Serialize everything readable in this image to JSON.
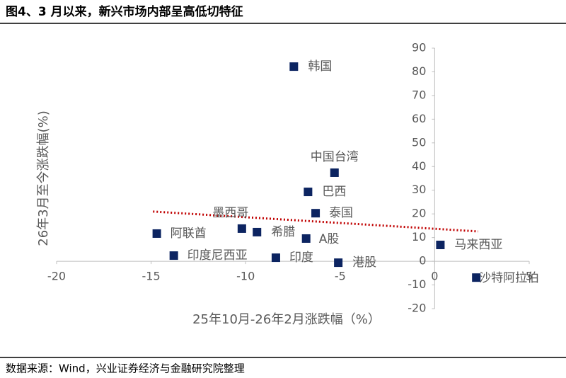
{
  "chart_data": {
    "type": "scatter",
    "title": "图4、3 月以来，新兴市场内部呈高低切特征",
    "source": "数据来源：Wind，兴业证券经济与金融研究院整理",
    "x_label": "25年10月-26年2月涨跌幅（%）",
    "y_label": "26年3月至今涨跌幅(%)",
    "color": "#0c2461",
    "labels": [
      "韩国",
      "中国台湾",
      "巴西",
      "泰国",
      "墨西哥",
      "希腊",
      "A股",
      "阿联酋",
      "印度尼西亚",
      "印度",
      "港股",
      "马来西亚",
      "沙特阿拉伯"
    ],
    "x": [
      -7.45,
      -5.3,
      -6.7,
      -6.3,
      -10.2,
      -9.4,
      -6.8,
      -14.7,
      -13.8,
      -8.4,
      -5.1,
      0.3,
      2.2
    ],
    "values": [
      82.2,
      37.4,
      29.3,
      20.3,
      13.8,
      12.3,
      9.6,
      11.7,
      2.4,
      1.5,
      -0.6,
      6.9,
      -6.9
    ],
    "trendline": {
      "color": "#c00000",
      "x": [
        -14.9,
        2.3
      ],
      "y": [
        21,
        12.6
      ]
    },
    "xlim": [
      -20,
      5
    ],
    "xticks": [
      -20,
      -15,
      -10,
      -5,
      0,
      5
    ],
    "ylim": [
      -20,
      90
    ],
    "yticks": [
      -20,
      -10,
      0,
      10,
      20,
      30,
      40,
      50,
      60,
      70,
      80,
      90
    ]
  }
}
